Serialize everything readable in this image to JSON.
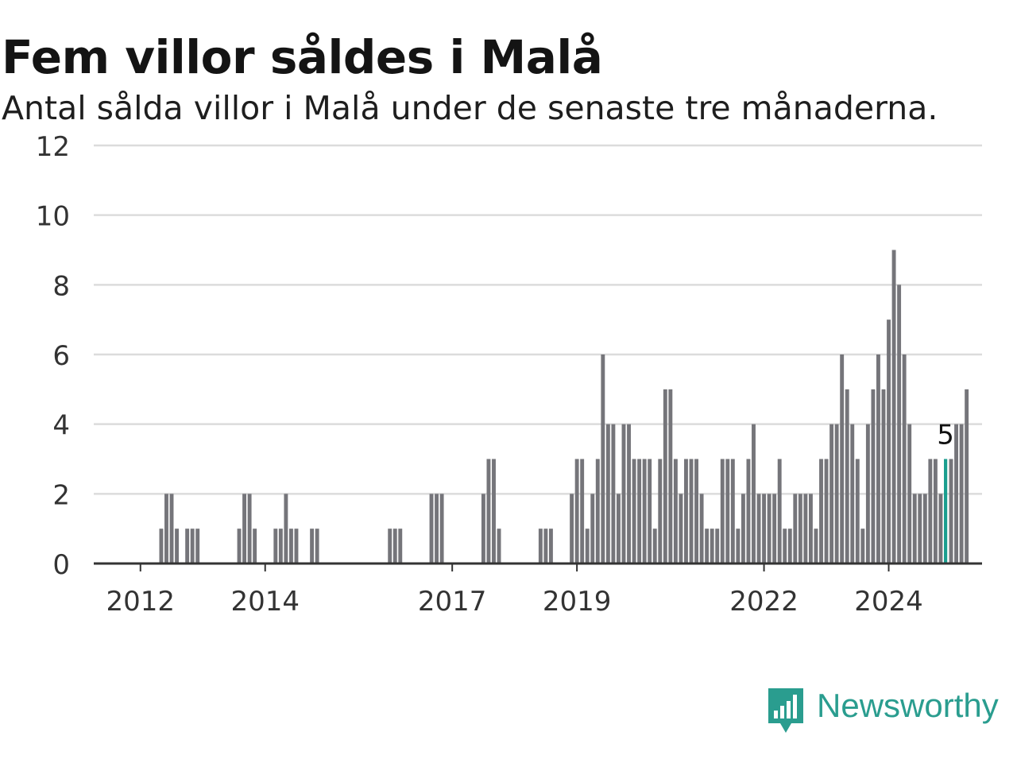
{
  "title": "Fem villor såldes i Malå",
  "subtitle": "Antal sålda villor i Malå under de senaste tre månaderna.",
  "brand": {
    "name": "Newsworthy",
    "logo_icon": "newsworthy-bar-chart-bubble-icon"
  },
  "colors": {
    "bar": "#75757a",
    "highlight": "#1a9e8f",
    "grid": "#dcdcdc",
    "axis": "#333333",
    "text": "#333333"
  },
  "chart_data": {
    "type": "bar",
    "title": "Fem villor såldes i Malå",
    "subtitle": "Antal sålda villor i Malå under de senaste tre månaderna.",
    "ylim": [
      0,
      12
    ],
    "y_ticks": [
      0,
      2,
      4,
      6,
      8,
      10,
      12
    ],
    "x_tick_labels": [
      {
        "label": "2012",
        "index": 8
      },
      {
        "label": "2014",
        "index": 32
      },
      {
        "label": "2017",
        "index": 68
      },
      {
        "label": "2019",
        "index": 92
      },
      {
        "label": "2022",
        "index": 128
      },
      {
        "label": "2024",
        "index": 152
      }
    ],
    "grid": true,
    "values": [
      0,
      0,
      0,
      0,
      0,
      0,
      0,
      0,
      0,
      0,
      0,
      0,
      1,
      2,
      2,
      1,
      0,
      1,
      1,
      1,
      0,
      0,
      0,
      0,
      0,
      0,
      0,
      1,
      2,
      2,
      1,
      0,
      0,
      0,
      1,
      1,
      2,
      1,
      1,
      0,
      0,
      1,
      1,
      0,
      0,
      0,
      0,
      0,
      0,
      0,
      0,
      0,
      0,
      0,
      0,
      0,
      1,
      1,
      1,
      0,
      0,
      0,
      0,
      0,
      2,
      2,
      2,
      0,
      0,
      0,
      0,
      0,
      0,
      0,
      2,
      3,
      3,
      1,
      0,
      0,
      0,
      0,
      0,
      0,
      0,
      1,
      1,
      1,
      0,
      0,
      0,
      2,
      3,
      3,
      1,
      2,
      3,
      6,
      4,
      4,
      2,
      4,
      4,
      3,
      3,
      3,
      3,
      1,
      3,
      5,
      5,
      3,
      2,
      3,
      3,
      3,
      2,
      1,
      1,
      1,
      3,
      3,
      3,
      1,
      2,
      3,
      4,
      2,
      2,
      2,
      2,
      3,
      1,
      1,
      2,
      2,
      2,
      2,
      1,
      3,
      3,
      4,
      4,
      6,
      5,
      4,
      3,
      1,
      4,
      5,
      6,
      5,
      7,
      9,
      8,
      6,
      4,
      2,
      2,
      2,
      3,
      3,
      2,
      3,
      3,
      4,
      4,
      5
    ],
    "highlight_index": 163,
    "highlight_label": "5"
  }
}
